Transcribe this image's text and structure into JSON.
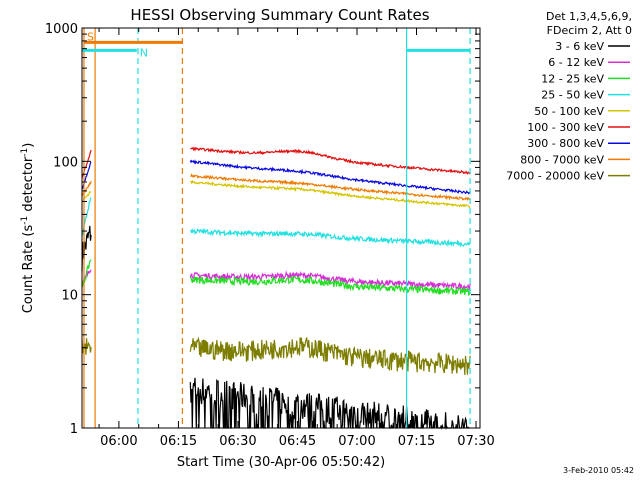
{
  "chart_data": {
    "type": "line",
    "title": "HESSI Observing Summary Count Rates",
    "xlabel": "Start Time (30-Apr-06 05:50:42)",
    "ylabel_main": "Count Rate (s",
    "ylabel_sup1": "-1",
    "ylabel_mid": " detector",
    "ylabel_sup2": "-1",
    "ylabel_end": ")",
    "footer": "3-Feb-2010 05:42",
    "x_start_min": 350.7,
    "x_end_min": 451,
    "xlim": [
      350.7,
      451
    ],
    "ylim": [
      1,
      1000
    ],
    "y_scale": "log",
    "x_ticks": [
      {
        "value": 360,
        "label": "06:00"
      },
      {
        "value": 375,
        "label": "06:15"
      },
      {
        "value": 390,
        "label": "06:30"
      },
      {
        "value": 405,
        "label": "06:45"
      },
      {
        "value": 420,
        "label": "07:00"
      },
      {
        "value": 435,
        "label": "07:15"
      },
      {
        "value": 450,
        "label": "07:30"
      }
    ],
    "y_ticks": [
      {
        "value": 1,
        "label": "1"
      },
      {
        "value": 10,
        "label": "10"
      },
      {
        "value": 100,
        "label": "100"
      },
      {
        "value": 1000,
        "label": "1000"
      }
    ],
    "legend_header": [
      "Det 1,3,4,5,6,9,",
      "FDecim 2, Att 0"
    ],
    "legend_position": "right",
    "series": [
      {
        "name": "3 - 6 keV",
        "color": "#000000",
        "seg1_start": 20,
        "seg1_end": 30,
        "seg2_start": 2,
        "seg2_end": 1,
        "noise": 0.25,
        "bump": 0.0,
        "dropout": true
      },
      {
        "name": "6 - 12 keV",
        "color": "#d62fd6",
        "seg1_start": 12,
        "seg1_end": 16,
        "seg2_start": 14,
        "seg2_end": 11.5,
        "noise": 0.05,
        "bump": 0.08
      },
      {
        "name": "12 - 25 keV",
        "color": "#22dd22",
        "seg1_start": 11,
        "seg1_end": 19,
        "seg2_start": 13,
        "seg2_end": 10.5,
        "noise": 0.06,
        "bump": 0.08
      },
      {
        "name": "25 - 50 keV",
        "color": "#22e0e0",
        "seg1_start": 28,
        "seg1_end": 55,
        "seg2_start": 30,
        "seg2_end": 24,
        "noise": 0.04,
        "bump": 0.04
      },
      {
        "name": "50 - 100 keV",
        "color": "#d4c400",
        "seg1_start": 50,
        "seg1_end": 60,
        "seg2_start": 70,
        "seg2_end": 46,
        "noise": 0.02,
        "bump": 0.04
      },
      {
        "name": "100 - 300 keV",
        "color": "#e01010",
        "seg1_start": 75,
        "seg1_end": 120,
        "seg2_start": 125,
        "seg2_end": 82,
        "noise": 0.02,
        "bump": 0.12
      },
      {
        "name": "300 - 800 keV",
        "color": "#0a0ae0",
        "seg1_start": 62,
        "seg1_end": 100,
        "seg2_start": 100,
        "seg2_end": 58,
        "noise": 0.02,
        "bump": 0.04
      },
      {
        "name": "800 - 7000 keV",
        "color": "#f07a00",
        "seg1_start": 55,
        "seg1_end": 70,
        "seg2_start": 78,
        "seg2_end": 52,
        "noise": 0.02,
        "bump": 0.03
      },
      {
        "name": "7000 - 20000 keV",
        "color": "#7d7d00",
        "seg1_start": 4,
        "seg1_end": 4,
        "seg2_start": 4,
        "seg2_end": 3,
        "noise": 0.18,
        "bump": 0.15
      }
    ],
    "data_segments": [
      {
        "x_start": 350.7,
        "x_end": 353.0
      },
      {
        "x_start": 378.0,
        "x_end": 448.5
      }
    ],
    "annotations": [
      {
        "label": "S",
        "color": "#f07a00",
        "x_start": 351.2,
        "x_end": 376.0,
        "y": 780
      },
      {
        "label": "N",
        "color": "#22e0e0",
        "x_start": 350.7,
        "x_end": 364.5,
        "y": 680
      },
      {
        "label": "",
        "color": "#22e0e0",
        "x_start": 432.5,
        "x_end": 448.5,
        "y": 680
      }
    ],
    "markers": [
      {
        "x": 351.2,
        "color": "#f07a00",
        "style": "solid"
      },
      {
        "x": 354.0,
        "color": "#f07a00",
        "style": "solid"
      },
      {
        "x": 364.8,
        "color": "#22e0e0",
        "style": "dashed"
      },
      {
        "x": 376.0,
        "color": "#f07a00",
        "style": "dashed"
      },
      {
        "x": 432.5,
        "color": "#22e0e0",
        "style": "solid"
      },
      {
        "x": 448.5,
        "color": "#22e0e0",
        "style": "dashed"
      }
    ]
  }
}
